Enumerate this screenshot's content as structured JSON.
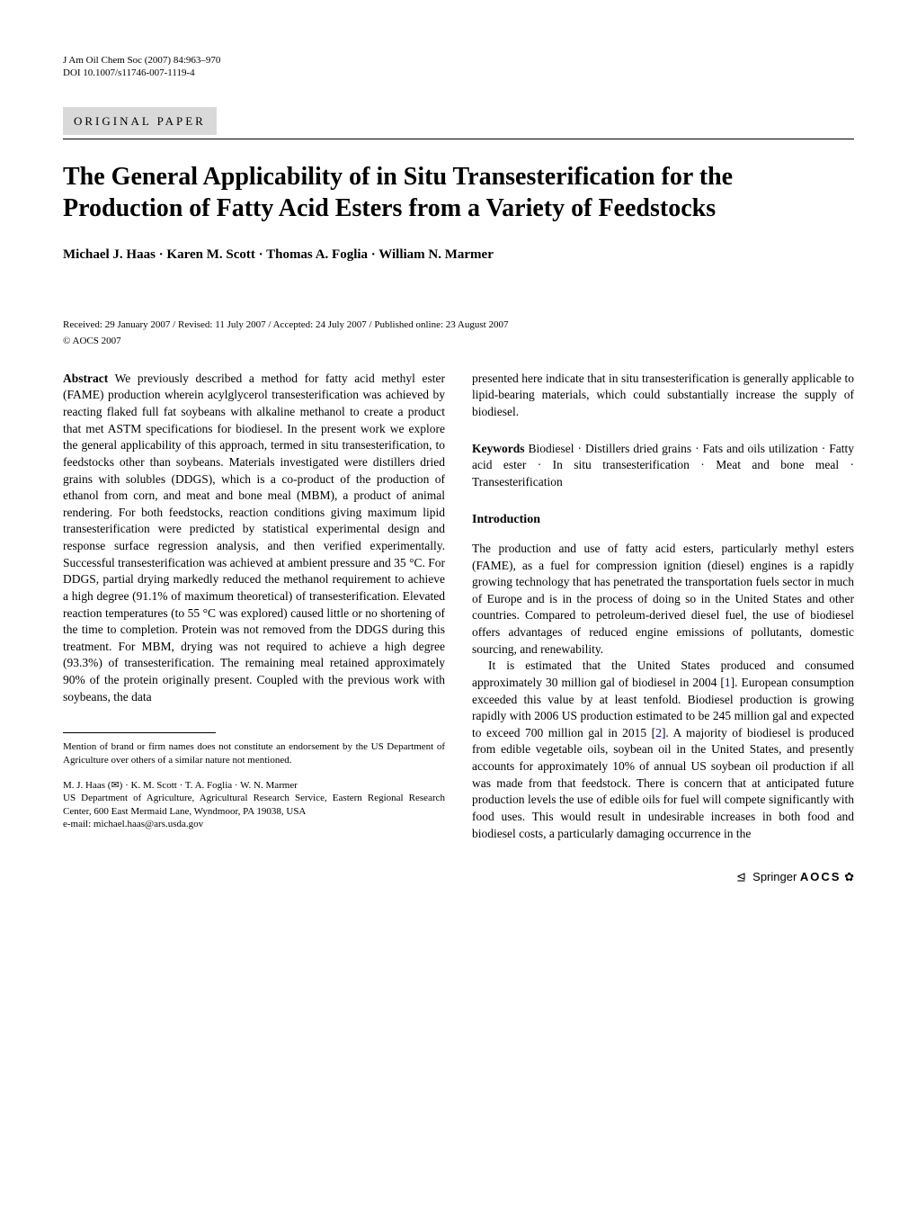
{
  "header": {
    "journal_line": "J Am Oil Chem Soc (2007) 84:963–970",
    "doi_line": "DOI 10.1007/s11746-007-1119-4"
  },
  "section_label": "ORIGINAL PAPER",
  "title": "The General Applicability of in Situ Transesterification for the Production of Fatty Acid Esters from a Variety of Feedstocks",
  "authors": "Michael J. Haas · Karen M. Scott · Thomas A. Foglia · William N. Marmer",
  "dates": "Received: 29 January 2007 / Revised: 11 July 2007 / Accepted: 24 July 2007 / Published online: 23 August 2007",
  "copyright": "© AOCS 2007",
  "abstract": {
    "label": "Abstract",
    "text_left": "  We previously described a method for fatty acid methyl ester (FAME) production wherein acylglycerol transesterification was achieved by reacting flaked full fat soybeans with alkaline methanol to create a product that met ASTM specifications for biodiesel. In the present work we explore the general applicability of this approach, termed in situ transesterification, to feedstocks other than soybeans. Materials investigated were distillers dried grains with solubles (DDGS), which is a co-product of the production of ethanol from corn, and meat and bone meal (MBM), a product of animal rendering. For both feedstocks, reaction conditions giving maximum lipid transesterification were predicted by statistical experimental design and response surface regression analysis, and then verified experimentally. Successful transesterification was achieved at ambient pressure and 35 °C. For DDGS, partial drying markedly reduced the methanol requirement to achieve a high degree (91.1% of maximum theoretical) of transesterification. Elevated reaction temperatures (to 55 °C was explored) caused little or no shortening of the time to completion. Protein was not removed from the DDGS during this treatment. For MBM, drying was not required to achieve a high degree (93.3%) of transesterification. The remaining meal retained approximately 90% of the protein originally present. Coupled with the previous work with soybeans, the data",
    "text_right": "presented here indicate that in situ transesterification is generally applicable to lipid-bearing materials, which could substantially increase the supply of biodiesel."
  },
  "keywords": {
    "label": "Keywords",
    "text": "  Biodiesel · Distillers dried grains · Fats and oils utilization · Fatty acid ester · In situ transesterification · Meat and bone meal · Transesterification"
  },
  "introduction": {
    "heading": "Introduction",
    "p1": "The production and use of fatty acid esters, particularly methyl esters (FAME), as a fuel for compression ignition (diesel) engines is a rapidly growing technology that has penetrated the transportation fuels sector in much of Europe and is in the process of doing so in the United States and other countries. Compared to petroleum-derived diesel fuel, the use of biodiesel offers advantages of reduced engine emissions of pollutants, domestic sourcing, and renewability.",
    "p2_a": "It is estimated that the United States produced and consumed approximately 30 million gal of biodiesel in 2004 [",
    "p2_ref1": "1",
    "p2_b": "]. European consumption exceeded this value by at least tenfold. Biodiesel production is growing rapidly with 2006 US production estimated to be 245 million gal and expected to exceed 700 million gal in 2015 [",
    "p2_ref2": "2",
    "p2_c": "]. A majority of biodiesel is produced from edible vegetable oils, soybean oil in the United States, and presently accounts for approximately 10% of annual US soybean oil production if all was made from that feedstock. There is concern that at anticipated future production levels the use of edible oils for fuel will compete significantly with food uses. This would result in undesirable increases in both food and biodiesel costs, a particularly damaging occurrence in the"
  },
  "footnote": {
    "mention": "Mention of brand or firm names does not constitute an endorsement by the US Department of Agriculture over others of a similar nature not mentioned.",
    "authors_line": "M. J. Haas (✉) · K. M. Scott · T. A. Foglia · W. N. Marmer",
    "affiliation": "US Department of Agriculture, Agricultural Research Service, Eastern Regional Research Center, 600 East Mermaid Lane, Wyndmoor, PA 19038, USA",
    "email": "e-mail: michael.haas@ars.usda.gov"
  },
  "footer": {
    "springer": "⁠ Springer",
    "aocs": "AOCS",
    "flower": "✿"
  },
  "style": {
    "background_color": "#ffffff",
    "text_color": "#000000",
    "section_label_bg": "#d9d9d9",
    "ref_link_color": "#0000cc",
    "body_font": "Georgia, 'Times New Roman', serif",
    "title_fontsize": 28,
    "body_fontsize": 13.5,
    "authors_fontsize": 15,
    "small_fontsize": 11
  }
}
